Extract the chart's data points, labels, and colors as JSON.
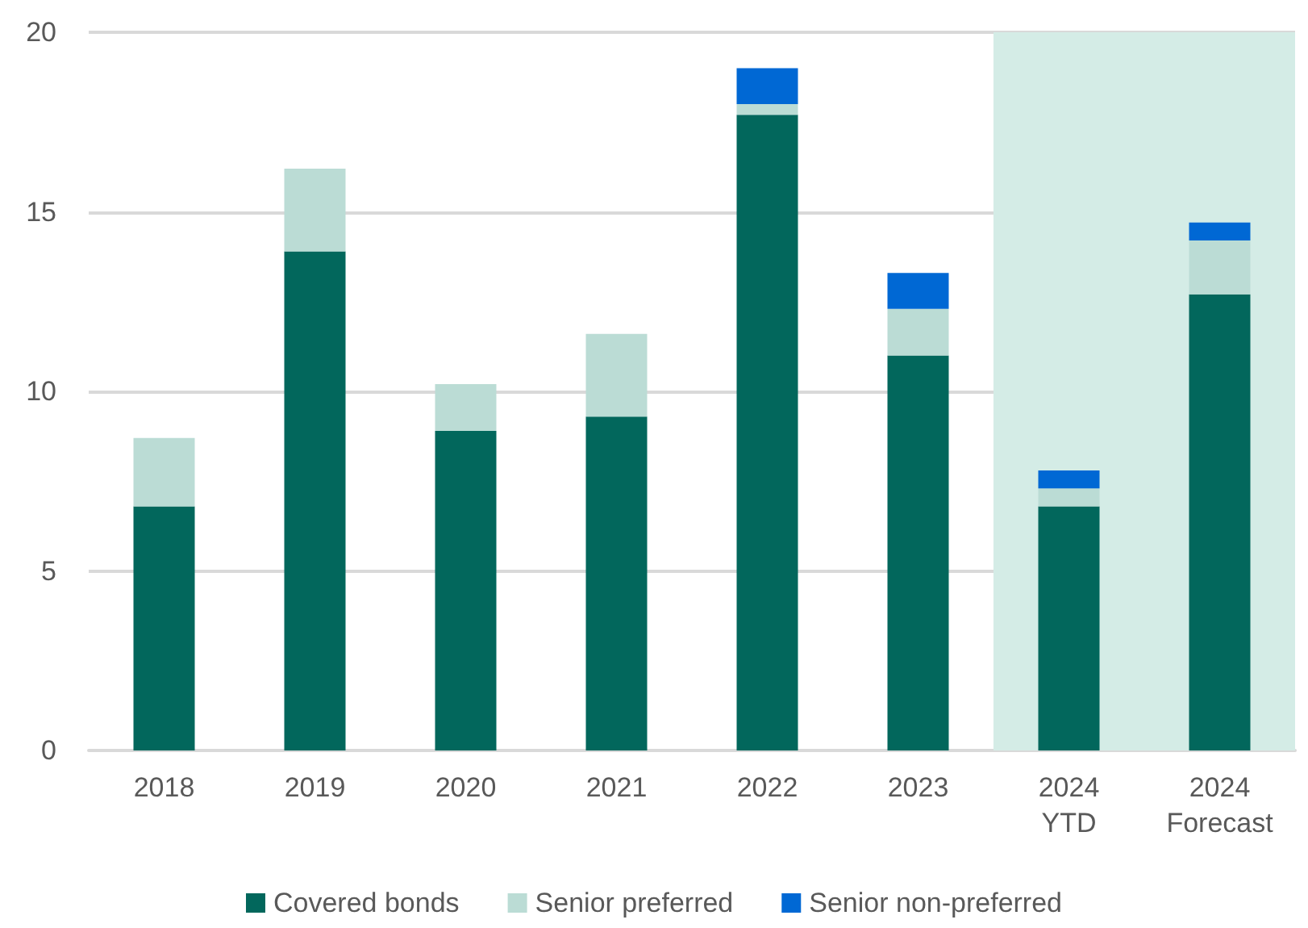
{
  "chart_data": {
    "type": "bar",
    "stacked": true,
    "categories": [
      "2018",
      "2019",
      "2020",
      "2021",
      "2022",
      "2023",
      "2024\nYTD",
      "2024\nForecast"
    ],
    "series": [
      {
        "name": "Covered bonds",
        "color": "#02675c",
        "values": [
          6.8,
          13.9,
          8.9,
          9.3,
          17.7,
          11.0,
          6.8,
          12.7
        ]
      },
      {
        "name": "Senior preferred",
        "color": "#bbdcd5",
        "values": [
          1.9,
          2.3,
          1.3,
          2.3,
          0.3,
          1.3,
          0.5,
          1.5
        ]
      },
      {
        "name": "Senior non-preferred",
        "color": "#0068d4",
        "values": [
          null,
          null,
          null,
          null,
          1.0,
          1.0,
          0.5,
          0.5
        ]
      }
    ],
    "ylim": [
      0,
      20
    ],
    "yticks": [
      0,
      5,
      10,
      15,
      20
    ],
    "grid": "y",
    "legend": "bottom",
    "bands": [
      {
        "axis": "x",
        "from": "2024\nYTD",
        "to": "2024\nForecast",
        "color": "#d4ece6"
      }
    ]
  }
}
